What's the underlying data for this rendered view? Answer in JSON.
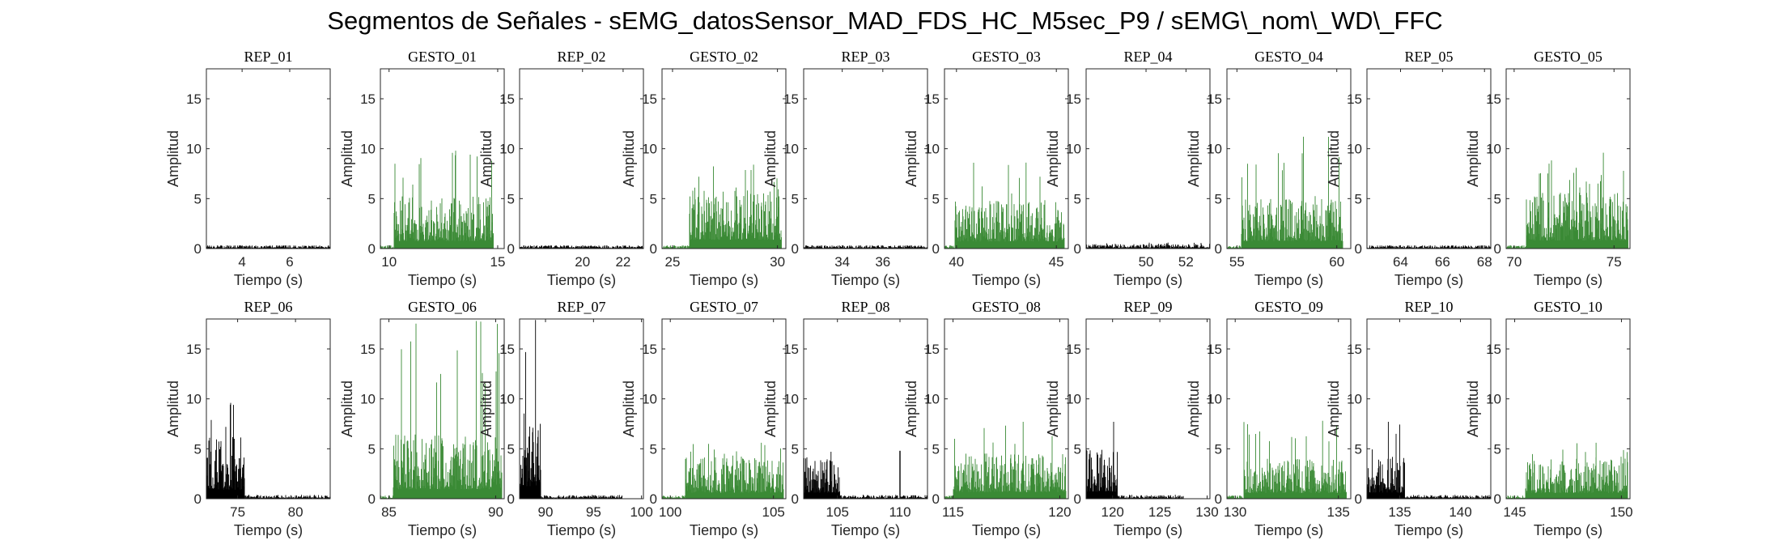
{
  "title": "Segmentos de Señales - sEMG_datosSensor_MAD_FDS_HC_M5sec_P9 / sEMG\\_nom\\_WD\\_FFC",
  "colors": {
    "rep": "#000000",
    "gesto": "#3a8a35",
    "axis": "#262626"
  },
  "chart_data": [
    {
      "type": "bar",
      "title": "REP_01",
      "xlabel": "Tiempo (s)",
      "ylabel": "Amplitud",
      "xlim": [
        2.5,
        7.7
      ],
      "ylim": [
        0,
        18
      ],
      "xticks": [
        4,
        6
      ],
      "yticks": [
        0,
        5,
        10,
        15
      ],
      "kind": "rep",
      "series": [
        {
          "name": "",
          "segments": [
            {
              "start": 2.5,
              "end": 7.7,
              "level": 0.2,
              "max": 0.3
            }
          ]
        }
      ]
    },
    {
      "type": "bar",
      "title": "GESTO_01",
      "xlabel": "Tiempo (s)",
      "ylabel": "Amplitud",
      "xlim": [
        9.6,
        15.3
      ],
      "ylim": [
        0,
        18
      ],
      "xticks": [
        10,
        15
      ],
      "yticks": [
        0,
        5,
        10,
        15
      ],
      "kind": "gesto",
      "series": [
        {
          "name": "",
          "segments": [
            {
              "start": 9.6,
              "end": 10.2,
              "level": 0.2,
              "max": 0.3
            },
            {
              "start": 10.2,
              "end": 14.8,
              "level": 3.0,
              "max": 9.8
            }
          ]
        }
      ]
    },
    {
      "type": "bar",
      "title": "REP_02",
      "xlabel": "Tiempo (s)",
      "ylabel": "Amplitud",
      "xlim": [
        16.9,
        23.0
      ],
      "ylim": [
        0,
        18
      ],
      "xticks": [
        20,
        22
      ],
      "yticks": [
        0,
        5,
        10,
        15
      ],
      "kind": "rep",
      "series": [
        {
          "name": "",
          "segments": [
            {
              "start": 16.9,
              "end": 23.0,
              "level": 0.2,
              "max": 0.3
            }
          ]
        }
      ]
    },
    {
      "type": "bar",
      "title": "GESTO_02",
      "xlabel": "Tiempo (s)",
      "ylabel": "Amplitud",
      "xlim": [
        24.5,
        30.4
      ],
      "ylim": [
        0,
        18
      ],
      "xticks": [
        25,
        30
      ],
      "yticks": [
        0,
        5,
        10,
        15
      ],
      "kind": "gesto",
      "series": [
        {
          "name": "",
          "segments": [
            {
              "start": 24.5,
              "end": 25.8,
              "level": 0.2,
              "max": 0.3
            },
            {
              "start": 25.8,
              "end": 30.2,
              "level": 3.5,
              "max": 8.4
            }
          ]
        }
      ]
    },
    {
      "type": "bar",
      "title": "REP_03",
      "xlabel": "Tiempo (s)",
      "ylabel": "Amplitud",
      "xlim": [
        32.1,
        38.2
      ],
      "ylim": [
        0,
        18
      ],
      "xticks": [
        34,
        36
      ],
      "yticks": [
        0,
        5,
        10,
        15
      ],
      "kind": "rep",
      "series": [
        {
          "name": "",
          "segments": [
            {
              "start": 32.1,
              "end": 38.2,
              "level": 0.2,
              "max": 0.3
            }
          ]
        }
      ]
    },
    {
      "type": "bar",
      "title": "GESTO_03",
      "xlabel": "Tiempo (s)",
      "ylabel": "Amplitud",
      "xlim": [
        39.4,
        45.6
      ],
      "ylim": [
        0,
        18
      ],
      "xticks": [
        40,
        45
      ],
      "yticks": [
        0,
        5,
        10,
        15
      ],
      "kind": "gesto",
      "series": [
        {
          "name": "",
          "segments": [
            {
              "start": 39.4,
              "end": 39.9,
              "level": 0.2,
              "max": 0.3
            },
            {
              "start": 39.9,
              "end": 45.4,
              "level": 2.8,
              "max": 8.6
            }
          ]
        }
      ]
    },
    {
      "type": "bar",
      "title": "REP_04",
      "xlabel": "Tiempo (s)",
      "ylabel": "Amplitud",
      "xlim": [
        47.0,
        53.2
      ],
      "ylim": [
        0,
        18
      ],
      "xticks": [
        50,
        52
      ],
      "yticks": [
        0,
        5,
        10,
        15
      ],
      "kind": "rep",
      "series": [
        {
          "name": "",
          "segments": [
            {
              "start": 47.0,
              "end": 53.2,
              "level": 0.25,
              "max": 0.6
            }
          ]
        }
      ]
    },
    {
      "type": "bar",
      "title": "GESTO_04",
      "xlabel": "Tiempo (s)",
      "ylabel": "Amplitud",
      "xlim": [
        54.5,
        60.7
      ],
      "ylim": [
        0,
        18
      ],
      "xticks": [
        55,
        60
      ],
      "yticks": [
        0,
        5,
        10,
        15
      ],
      "kind": "gesto",
      "series": [
        {
          "name": "",
          "segments": [
            {
              "start": 54.5,
              "end": 55.2,
              "level": 0.2,
              "max": 0.3
            },
            {
              "start": 55.2,
              "end": 60.3,
              "level": 3.0,
              "max": 11.2
            }
          ]
        }
      ]
    },
    {
      "type": "bar",
      "title": "REP_05",
      "xlabel": "Tiempo (s)",
      "ylabel": "Amplitud",
      "xlim": [
        62.4,
        68.3
      ],
      "ylim": [
        0,
        18
      ],
      "xticks": [
        64,
        66,
        68
      ],
      "yticks": [
        0,
        5,
        10,
        15
      ],
      "kind": "rep",
      "series": [
        {
          "name": "",
          "segments": [
            {
              "start": 62.4,
              "end": 68.3,
              "level": 0.2,
              "max": 0.3
            }
          ]
        }
      ]
    },
    {
      "type": "bar",
      "title": "GESTO_05",
      "xlabel": "Tiempo (s)",
      "ylabel": "Amplitud",
      "xlim": [
        69.6,
        75.8
      ],
      "ylim": [
        0,
        18
      ],
      "xticks": [
        70,
        75
      ],
      "yticks": [
        0,
        5,
        10,
        15
      ],
      "kind": "gesto",
      "series": [
        {
          "name": "",
          "segments": [
            {
              "start": 69.6,
              "end": 70.6,
              "level": 0.2,
              "max": 0.3
            },
            {
              "start": 70.6,
              "end": 75.7,
              "level": 3.2,
              "max": 9.6
            }
          ]
        }
      ]
    },
    {
      "type": "bar",
      "title": "REP_06",
      "xlabel": "Tiempo (s)",
      "ylabel": "Amplitud",
      "xlim": [
        72.3,
        83.0
      ],
      "ylim": [
        0,
        18
      ],
      "xticks": [
        75,
        80
      ],
      "yticks": [
        0,
        5,
        10,
        15
      ],
      "kind": "rep",
      "series": [
        {
          "name": "",
          "segments": [
            {
              "start": 72.3,
              "end": 75.6,
              "level": 3.6,
              "max": 9.6
            },
            {
              "start": 75.6,
              "end": 83.0,
              "level": 0.2,
              "max": 0.4
            }
          ]
        }
      ]
    },
    {
      "type": "bar",
      "title": "GESTO_06",
      "xlabel": "Tiempo (s)",
      "ylabel": "Amplitud",
      "xlim": [
        84.6,
        90.4
      ],
      "ylim": [
        0,
        18
      ],
      "xticks": [
        85,
        90
      ],
      "yticks": [
        0,
        5,
        10,
        15
      ],
      "kind": "gesto",
      "series": [
        {
          "name": "",
          "segments": [
            {
              "start": 84.6,
              "end": 85.2,
              "level": 0.2,
              "max": 0.3
            },
            {
              "start": 85.2,
              "end": 90.3,
              "level": 3.8,
              "max": 17.8
            }
          ]
        }
      ]
    },
    {
      "type": "bar",
      "title": "REP_07",
      "xlabel": "Tiempo (s)",
      "ylabel": "Amplitud",
      "xlim": [
        87.3,
        100.2
      ],
      "ylim": [
        0,
        18
      ],
      "xticks": [
        90,
        95,
        100
      ],
      "yticks": [
        0,
        5,
        10,
        15
      ],
      "kind": "rep",
      "series": [
        {
          "name": "",
          "segments": [
            {
              "start": 87.3,
              "end": 89.5,
              "level": 5.0,
              "max": 17.9
            },
            {
              "start": 89.5,
              "end": 98.0,
              "level": 0.2,
              "max": 0.4
            }
          ]
        }
      ]
    },
    {
      "type": "bar",
      "title": "GESTO_07",
      "xlabel": "Tiempo (s)",
      "ylabel": "Amplitud",
      "xlim": [
        99.6,
        105.6
      ],
      "ylim": [
        0,
        18
      ],
      "xticks": [
        100,
        105
      ],
      "yticks": [
        0,
        5,
        10,
        15
      ],
      "kind": "gesto",
      "series": [
        {
          "name": "",
          "segments": [
            {
              "start": 99.6,
              "end": 100.7,
              "level": 0.2,
              "max": 0.3
            },
            {
              "start": 100.7,
              "end": 105.5,
              "level": 2.4,
              "max": 5.6
            }
          ]
        }
      ]
    },
    {
      "type": "bar",
      "title": "REP_08",
      "xlabel": "Tiempo (s)",
      "ylabel": "Amplitud",
      "xlim": [
        102.3,
        112.2
      ],
      "ylim": [
        0,
        18
      ],
      "xticks": [
        105,
        110
      ],
      "yticks": [
        0,
        5,
        10,
        15
      ],
      "kind": "rep",
      "series": [
        {
          "name": "",
          "segments": [
            {
              "start": 102.3,
              "end": 105.2,
              "level": 2.4,
              "max": 4.7
            },
            {
              "start": 105.2,
              "end": 112.2,
              "level": 0.2,
              "max": 0.4
            }
          ],
          "spikes": [
            {
              "x": 110.0,
              "y": 4.8
            }
          ]
        }
      ]
    },
    {
      "type": "bar",
      "title": "GESTO_08",
      "xlabel": "Tiempo (s)",
      "ylabel": "Amplitud",
      "xlim": [
        114.6,
        120.4
      ],
      "ylim": [
        0,
        18
      ],
      "xticks": [
        115,
        120
      ],
      "yticks": [
        0,
        5,
        10,
        15
      ],
      "kind": "gesto",
      "series": [
        {
          "name": "",
          "segments": [
            {
              "start": 114.6,
              "end": 115.0,
              "level": 0.2,
              "max": 0.3
            },
            {
              "start": 115.0,
              "end": 120.3,
              "level": 2.6,
              "max": 7.7
            }
          ]
        }
      ]
    },
    {
      "type": "bar",
      "title": "REP_09",
      "xlabel": "Tiempo (s)",
      "ylabel": "Amplitud",
      "xlim": [
        117.2,
        130.3
      ],
      "ylim": [
        0,
        18
      ],
      "xticks": [
        120,
        125,
        130
      ],
      "yticks": [
        0,
        5,
        10,
        15
      ],
      "kind": "rep",
      "series": [
        {
          "name": "",
          "segments": [
            {
              "start": 117.2,
              "end": 120.5,
              "level": 2.8,
              "max": 7.7
            },
            {
              "start": 120.5,
              "end": 127.5,
              "level": 0.2,
              "max": 0.4
            }
          ]
        }
      ]
    },
    {
      "type": "bar",
      "title": "GESTO_09",
      "xlabel": "Tiempo (s)",
      "ylabel": "Amplitud",
      "xlim": [
        129.6,
        135.6
      ],
      "ylim": [
        0,
        18
      ],
      "xticks": [
        130,
        135
      ],
      "yticks": [
        0,
        5,
        10,
        15
      ],
      "kind": "gesto",
      "series": [
        {
          "name": "",
          "segments": [
            {
              "start": 129.6,
              "end": 130.4,
              "level": 0.2,
              "max": 0.3
            },
            {
              "start": 130.4,
              "end": 135.4,
              "level": 2.3,
              "max": 7.8
            }
          ]
        }
      ]
    },
    {
      "type": "bar",
      "title": "REP_10",
      "xlabel": "Tiempo (s)",
      "ylabel": "Amplitud",
      "xlim": [
        132.3,
        142.5
      ],
      "ylim": [
        0,
        18
      ],
      "xticks": [
        135,
        140
      ],
      "yticks": [
        0,
        5,
        10,
        15
      ],
      "kind": "rep",
      "series": [
        {
          "name": "",
          "segments": [
            {
              "start": 132.3,
              "end": 135.4,
              "level": 2.4,
              "max": 7.7
            },
            {
              "start": 135.4,
              "end": 142.5,
              "level": 0.2,
              "max": 0.4
            }
          ]
        }
      ]
    },
    {
      "type": "bar",
      "title": "GESTO_10",
      "xlabel": "Tiempo (s)",
      "ylabel": "Amplitud",
      "xlim": [
        144.6,
        150.4
      ],
      "ylim": [
        0,
        18
      ],
      "xticks": [
        145,
        150
      ],
      "yticks": [
        0,
        5,
        10,
        15
      ],
      "kind": "gesto",
      "series": [
        {
          "name": "",
          "segments": [
            {
              "start": 144.6,
              "end": 145.5,
              "level": 0.2,
              "max": 0.3
            },
            {
              "start": 145.5,
              "end": 150.3,
              "level": 2.3,
              "max": 5.6
            }
          ]
        }
      ]
    }
  ]
}
